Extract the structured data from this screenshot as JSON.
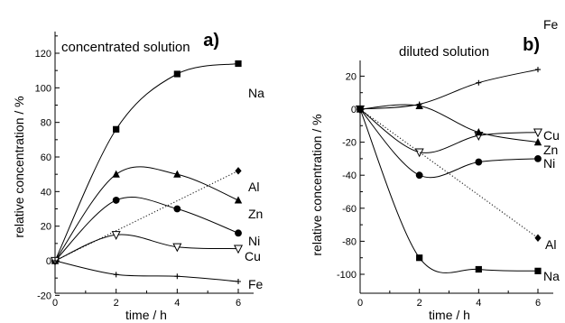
{
  "chart_data": [
    {
      "type": "line",
      "panel": "a)",
      "title": "concentrated solution",
      "xlabel": "time / h",
      "ylabel": "relative concentration / %",
      "x": [
        0,
        2,
        4,
        6
      ],
      "xticks": [
        "0",
        "2",
        "4",
        "6"
      ],
      "yticks": [
        "-20",
        "0",
        "20",
        "40",
        "60",
        "80",
        "100",
        "120"
      ],
      "xlim": [
        0,
        7
      ],
      "ylim": [
        -20,
        130
      ],
      "series": [
        {
          "name": "Na",
          "marker": "square",
          "curve": "smooth",
          "values": [
            0,
            76,
            108,
            114
          ]
        },
        {
          "name": "Al",
          "marker": "diamond",
          "curve": "dotted-linear",
          "values": [
            0,
            null,
            null,
            52
          ]
        },
        {
          "name": "Zn",
          "marker": "triangle",
          "curve": "smooth",
          "values": [
            0,
            50,
            50,
            35
          ]
        },
        {
          "name": "Ni",
          "marker": "circle",
          "curve": "smooth",
          "values": [
            0,
            35,
            30,
            16
          ]
        },
        {
          "name": "Cu",
          "marker": "triangle-down-open",
          "curve": "smooth",
          "values": [
            0,
            15,
            8,
            7
          ]
        },
        {
          "name": "Fe",
          "marker": "plus",
          "curve": "smooth",
          "values": [
            0,
            -8,
            -9,
            -12
          ]
        }
      ]
    },
    {
      "type": "line",
      "panel": "b)",
      "title": "diluted solution",
      "xlabel": "time / h",
      "ylabel": "relative concentration / %",
      "x": [
        0,
        2,
        4,
        6
      ],
      "xticks": [
        "0",
        "2",
        "4",
        "6"
      ],
      "yticks": [
        "-100",
        "-80",
        "-60",
        "-40",
        "-20",
        "0",
        "20"
      ],
      "xlim": [
        0,
        7
      ],
      "ylim": [
        -110,
        30
      ],
      "series": [
        {
          "name": "Fe",
          "marker": "plus",
          "curve": "smooth",
          "values": [
            0,
            3,
            16,
            24
          ]
        },
        {
          "name": "Cu",
          "marker": "triangle-down-open",
          "curve": "smooth",
          "values": [
            0,
            -26,
            -16,
            -14
          ]
        },
        {
          "name": "Zn",
          "marker": "triangle",
          "curve": "smooth",
          "values": [
            0,
            2,
            -14,
            -20
          ]
        },
        {
          "name": "Ni",
          "marker": "circle",
          "curve": "smooth",
          "values": [
            0,
            -40,
            -32,
            -30
          ]
        },
        {
          "name": "Al",
          "marker": "diamond",
          "curve": "dotted-linear",
          "values": [
            0,
            null,
            null,
            -78
          ]
        },
        {
          "name": "Na",
          "marker": "square",
          "curve": "smooth",
          "values": [
            0,
            -90,
            -97,
            -98
          ]
        }
      ]
    }
  ]
}
